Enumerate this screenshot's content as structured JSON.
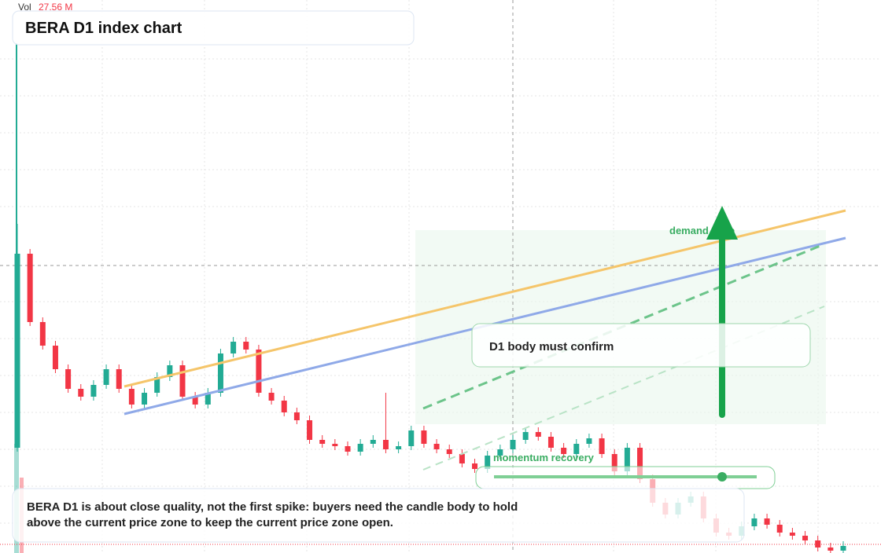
{
  "chart_data": {
    "type": "candlestick",
    "title": "BERA D1 index chart",
    "volume_label": "Vol",
    "volume_value": "27.56 M",
    "annotations": {
      "demand": "demand zone",
      "confirm": "D1 body must confirm",
      "momentum": "momentum recovery",
      "caption": "BERA D1 is about close quality, not the first spike: buyers need the candle body to hold above the current price zone to keep the current price zone open."
    },
    "up_color": "#22ab94",
    "down_color": "#f23645",
    "ylim": [
      0,
      704
    ],
    "open": [
      134,
      381,
      294,
      264,
      234,
      209,
      199,
      214,
      234,
      209,
      189,
      204,
      224,
      239,
      199,
      189,
      204,
      254,
      269,
      259,
      204,
      194,
      179,
      169,
      144,
      139,
      136,
      129,
      139,
      144,
      132,
      136,
      156,
      139,
      132,
      126,
      114,
      107,
      124,
      132,
      144,
      154,
      148,
      134,
      126,
      139,
      146,
      126,
      104,
      134,
      94,
      64,
      49,
      64,
      72,
      44,
      26,
      22,
      34,
      44,
      36,
      26,
      22,
      16,
      7,
      3
    ],
    "high": [
      419,
      387,
      300,
      270,
      240,
      215,
      220,
      240,
      240,
      215,
      210,
      230,
      245,
      245,
      205,
      210,
      260,
      275,
      275,
      265,
      210,
      200,
      185,
      175,
      150,
      145,
      142,
      145,
      150,
      204,
      142,
      162,
      162,
      145,
      138,
      132,
      120,
      130,
      138,
      150,
      160,
      160,
      154,
      140,
      145,
      152,
      152,
      132,
      140,
      140,
      100,
      70,
      70,
      78,
      78,
      50,
      32,
      40,
      50,
      50,
      42,
      32,
      28,
      22,
      13,
      15
    ],
    "low": [
      129,
      289,
      259,
      229,
      204,
      194,
      194,
      209,
      204,
      184,
      184,
      199,
      219,
      194,
      184,
      184,
      199,
      249,
      254,
      199,
      189,
      174,
      164,
      139,
      134,
      131,
      124,
      124,
      134,
      127,
      127,
      131,
      134,
      127,
      121,
      109,
      102,
      102,
      119,
      127,
      139,
      143,
      129,
      121,
      121,
      134,
      121,
      99,
      99,
      89,
      59,
      44,
      44,
      59,
      39,
      21,
      17,
      17,
      29,
      31,
      21,
      17,
      11,
      2,
      0,
      0
    ],
    "close": [
      381,
      294,
      264,
      234,
      209,
      199,
      214,
      234,
      209,
      189,
      204,
      224,
      239,
      199,
      189,
      204,
      254,
      269,
      259,
      204,
      194,
      179,
      169,
      144,
      139,
      136,
      129,
      139,
      144,
      132,
      136,
      156,
      139,
      132,
      126,
      114,
      107,
      124,
      132,
      144,
      154,
      148,
      134,
      126,
      139,
      146,
      126,
      104,
      134,
      94,
      64,
      49,
      64,
      72,
      44,
      26,
      22,
      34,
      44,
      36,
      26,
      22,
      16,
      7,
      3,
      9
    ]
  }
}
